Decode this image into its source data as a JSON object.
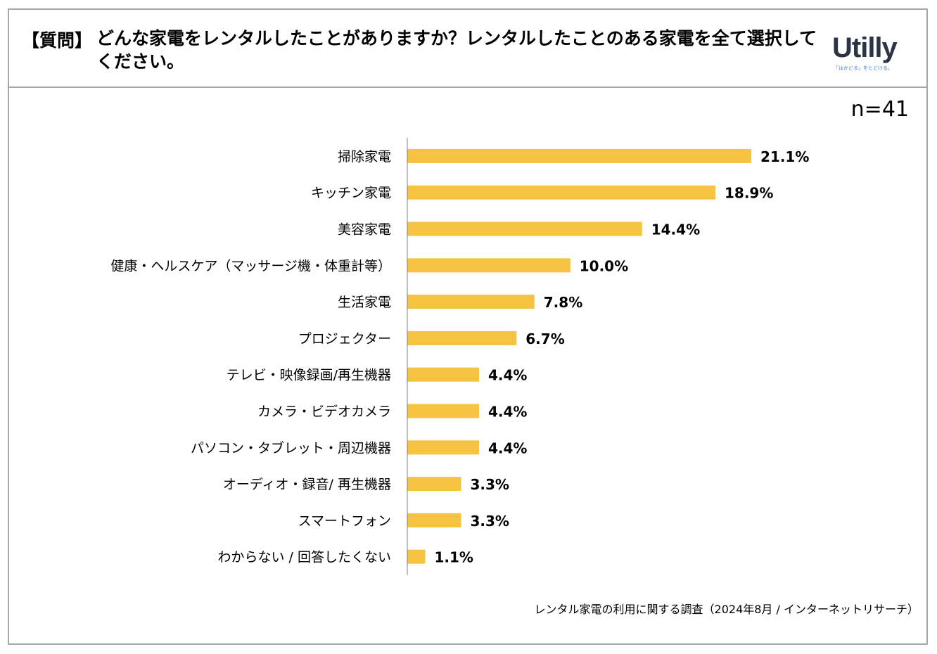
{
  "header": {
    "question_tag": "【質問】",
    "question_text": "どんな家電をレンタルしたことがありますか？レンタルしたことのある家電を全て選択してください。",
    "logo_text": "Utilly",
    "logo_tagline": "「はかどる」をとどける。"
  },
  "sample_size": "n=41",
  "footer": "レンタル家電の利用に関する調査（2024年8月 / インターネットリサーチ）",
  "colors": {
    "bar": "#f5c242",
    "border": "#a6a6a6",
    "axis": "#808080"
  },
  "chart_data": {
    "type": "bar",
    "orientation": "horizontal",
    "title": "",
    "xlabel": "",
    "ylabel": "",
    "xlim": [
      0,
      21.1
    ],
    "categories": [
      "掃除家電",
      "キッチン家電",
      "美容家電",
      "健康・ヘルスケア（マッサージ機・体重計等）",
      "生活家電",
      "プロジェクター",
      "テレビ・映像録画/再生機器",
      "カメラ・ビデオカメラ",
      "パソコン・タブレット・周辺機器",
      "オーディオ・録音/ 再生機器",
      "スマートフォン",
      "わからない / 回答したくない"
    ],
    "values": [
      21.1,
      18.9,
      14.4,
      10.0,
      7.8,
      6.7,
      4.4,
      4.4,
      4.4,
      3.3,
      3.3,
      1.1
    ],
    "value_labels": [
      "21.1%",
      "18.9%",
      "14.4%",
      "10.0%",
      "7.8%",
      "6.7%",
      "4.4%",
      "4.4%",
      "4.4%",
      "3.3%",
      "3.3%",
      "1.1%"
    ]
  }
}
